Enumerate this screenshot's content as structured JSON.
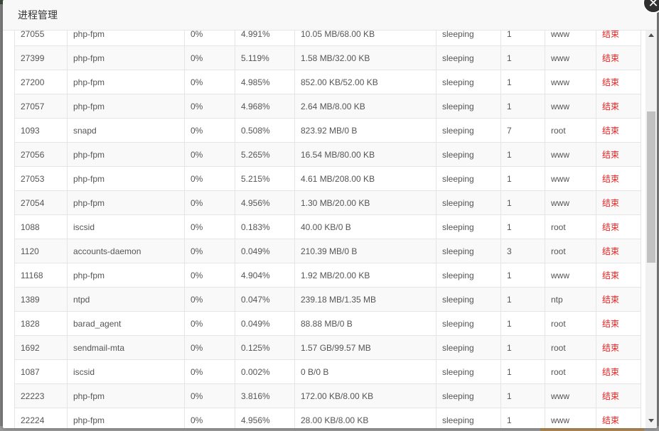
{
  "dialog": {
    "title": "进程管理",
    "close_glyph": "✕"
  },
  "processes": [
    {
      "pid": "27055",
      "name": "php-fpm",
      "cpu": "0%",
      "mem": "4.991%",
      "io": "10.05 MB/68.00 KB",
      "status": "sleeping",
      "threads": "1",
      "user": "www",
      "action": "结束"
    },
    {
      "pid": "27399",
      "name": "php-fpm",
      "cpu": "0%",
      "mem": "5.119%",
      "io": "1.58 MB/32.00 KB",
      "status": "sleeping",
      "threads": "1",
      "user": "www",
      "action": "结束"
    },
    {
      "pid": "27200",
      "name": "php-fpm",
      "cpu": "0%",
      "mem": "4.985%",
      "io": "852.00 KB/52.00 KB",
      "status": "sleeping",
      "threads": "1",
      "user": "www",
      "action": "结束"
    },
    {
      "pid": "27057",
      "name": "php-fpm",
      "cpu": "0%",
      "mem": "4.968%",
      "io": "2.64 MB/8.00 KB",
      "status": "sleeping",
      "threads": "1",
      "user": "www",
      "action": "结束"
    },
    {
      "pid": "1093",
      "name": "snapd",
      "cpu": "0%",
      "mem": "0.508%",
      "io": "823.92 MB/0 B",
      "status": "sleeping",
      "threads": "7",
      "user": "root",
      "action": "结束"
    },
    {
      "pid": "27056",
      "name": "php-fpm",
      "cpu": "0%",
      "mem": "5.265%",
      "io": "16.54 MB/80.00 KB",
      "status": "sleeping",
      "threads": "1",
      "user": "www",
      "action": "结束"
    },
    {
      "pid": "27053",
      "name": "php-fpm",
      "cpu": "0%",
      "mem": "5.215%",
      "io": "4.61 MB/208.00 KB",
      "status": "sleeping",
      "threads": "1",
      "user": "www",
      "action": "结束"
    },
    {
      "pid": "27054",
      "name": "php-fpm",
      "cpu": "0%",
      "mem": "4.956%",
      "io": "1.30 MB/20.00 KB",
      "status": "sleeping",
      "threads": "1",
      "user": "www",
      "action": "结束"
    },
    {
      "pid": "1088",
      "name": "iscsid",
      "cpu": "0%",
      "mem": "0.183%",
      "io": "40.00 KB/0 B",
      "status": "sleeping",
      "threads": "1",
      "user": "root",
      "action": "结束"
    },
    {
      "pid": "1120",
      "name": "accounts-daemon",
      "cpu": "0%",
      "mem": "0.049%",
      "io": "210.39 MB/0 B",
      "status": "sleeping",
      "threads": "3",
      "user": "root",
      "action": "结束"
    },
    {
      "pid": "11168",
      "name": "php-fpm",
      "cpu": "0%",
      "mem": "4.904%",
      "io": "1.92 MB/20.00 KB",
      "status": "sleeping",
      "threads": "1",
      "user": "www",
      "action": "结束"
    },
    {
      "pid": "1389",
      "name": "ntpd",
      "cpu": "0%",
      "mem": "0.047%",
      "io": "239.18 MB/1.35 MB",
      "status": "sleeping",
      "threads": "1",
      "user": "ntp",
      "action": "结束"
    },
    {
      "pid": "1828",
      "name": "barad_agent",
      "cpu": "0%",
      "mem": "0.049%",
      "io": "88.88 MB/0 B",
      "status": "sleeping",
      "threads": "1",
      "user": "root",
      "action": "结束"
    },
    {
      "pid": "1692",
      "name": "sendmail-mta",
      "cpu": "0%",
      "mem": "0.125%",
      "io": "1.57 GB/99.57 MB",
      "status": "sleeping",
      "threads": "1",
      "user": "root",
      "action": "结束"
    },
    {
      "pid": "1087",
      "name": "iscsid",
      "cpu": "0%",
      "mem": "0.002%",
      "io": "0 B/0 B",
      "status": "sleeping",
      "threads": "1",
      "user": "root",
      "action": "结束"
    },
    {
      "pid": "22223",
      "name": "php-fpm",
      "cpu": "0%",
      "mem": "3.816%",
      "io": "172.00 KB/8.00 KB",
      "status": "sleeping",
      "threads": "1",
      "user": "www",
      "action": "结束"
    },
    {
      "pid": "22224",
      "name": "php-fpm",
      "cpu": "0%",
      "mem": "4.956%",
      "io": "28.00 KB/8.00 KB",
      "status": "sleeping",
      "threads": "1",
      "user": "www",
      "action": "结束"
    }
  ],
  "colors": {
    "kill_link": "#e82020",
    "header_bg": "#f8f8f8",
    "border": "#e5e5e5"
  },
  "icons": {
    "close": "close-icon",
    "scroll_up": "arrow-up-icon",
    "scroll_down": "arrow-down-icon"
  }
}
